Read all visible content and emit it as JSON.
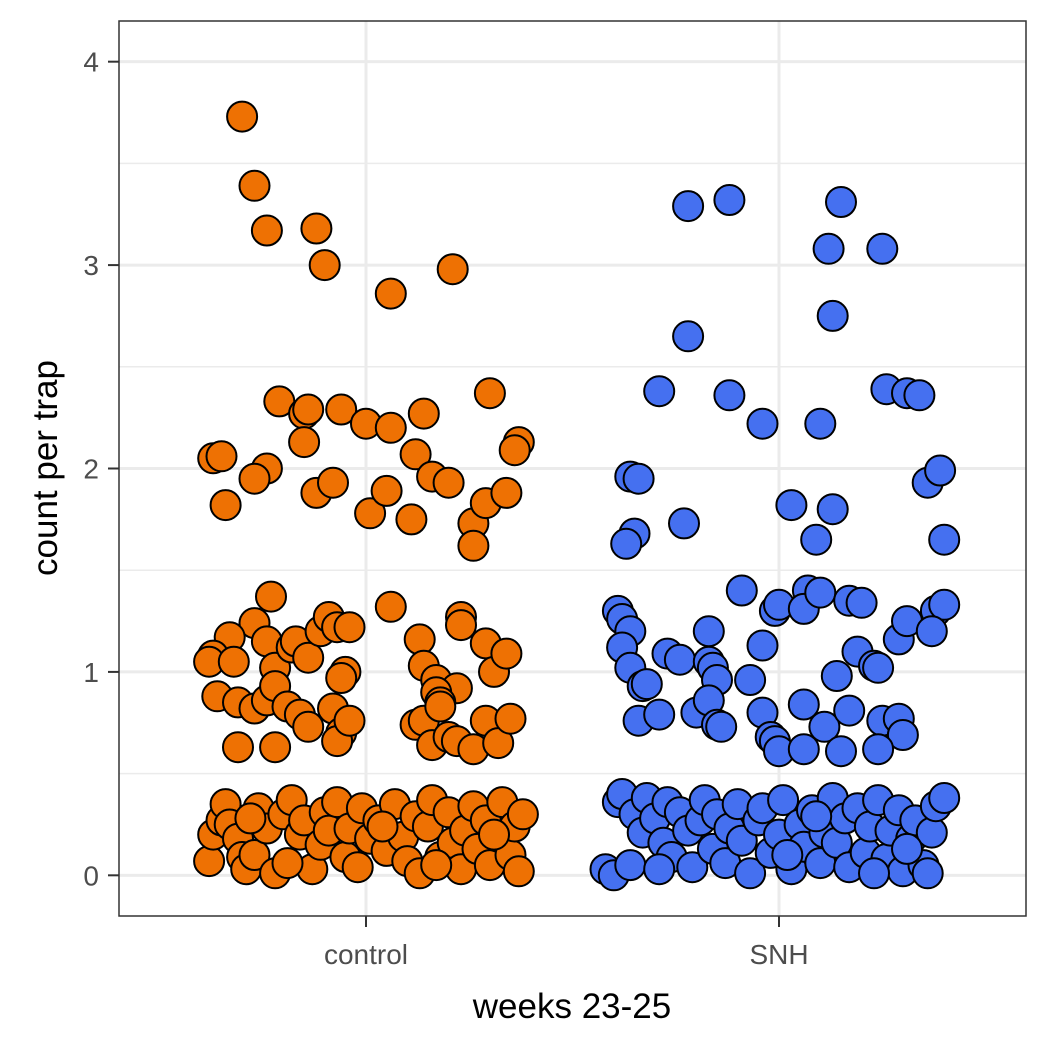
{
  "chart_data": {
    "type": "scatter",
    "subtype": "jitter strip plot",
    "title": "",
    "xlabel": "weeks 23-25",
    "ylabel": "count per trap",
    "categories": [
      "control",
      "SNH"
    ],
    "ylim": [
      -0.2,
      4.2
    ],
    "yticks": [
      0,
      1,
      2,
      3,
      4
    ],
    "grid": true,
    "legend": "none",
    "point_outline": "#000000",
    "series": [
      {
        "category": "control",
        "color": "#EE7103",
        "points": [
          [
            -0.3,
            3.73
          ],
          [
            -0.27,
            3.39
          ],
          [
            -0.24,
            3.17
          ],
          [
            -0.12,
            3.18
          ],
          [
            -0.1,
            3.0
          ],
          [
            0.06,
            2.86
          ],
          [
            0.21,
            2.98
          ],
          [
            -0.21,
            2.33
          ],
          [
            -0.15,
            2.27
          ],
          [
            -0.14,
            2.29
          ],
          [
            -0.06,
            2.29
          ],
          [
            0.0,
            2.22
          ],
          [
            0.06,
            2.2
          ],
          [
            0.14,
            2.27
          ],
          [
            0.3,
            2.37
          ],
          [
            -0.37,
            2.05
          ],
          [
            -0.35,
            2.06
          ],
          [
            -0.24,
            2.0
          ],
          [
            -0.15,
            2.13
          ],
          [
            0.12,
            2.07
          ],
          [
            0.37,
            2.13
          ],
          [
            0.36,
            2.09
          ],
          [
            -0.34,
            1.82
          ],
          [
            -0.27,
            1.95
          ],
          [
            -0.12,
            1.88
          ],
          [
            -0.08,
            1.93
          ],
          [
            0.01,
            1.78
          ],
          [
            0.05,
            1.89
          ],
          [
            0.11,
            1.75
          ],
          [
            0.16,
            1.96
          ],
          [
            0.2,
            1.93
          ],
          [
            0.26,
            1.73
          ],
          [
            0.26,
            1.62
          ],
          [
            0.29,
            1.83
          ],
          [
            0.34,
            1.88
          ],
          [
            -0.23,
            1.37
          ],
          [
            -0.27,
            1.24
          ],
          [
            -0.33,
            1.17
          ],
          [
            -0.37,
            1.08
          ],
          [
            -0.38,
            1.05
          ],
          [
            -0.32,
            1.05
          ],
          [
            -0.24,
            1.15
          ],
          [
            -0.22,
            1.02
          ],
          [
            -0.18,
            1.12
          ],
          [
            -0.17,
            1.15
          ],
          [
            -0.14,
            1.07
          ],
          [
            -0.11,
            1.2
          ],
          [
            -0.09,
            1.27
          ],
          [
            -0.07,
            1.22
          ],
          [
            -0.04,
            1.22
          ],
          [
            -0.05,
            1.0
          ],
          [
            -0.06,
            0.97
          ],
          [
            0.06,
            1.32
          ],
          [
            0.13,
            1.16
          ],
          [
            0.14,
            1.03
          ],
          [
            0.17,
            0.96
          ],
          [
            0.22,
            0.92
          ],
          [
            0.23,
            1.27
          ],
          [
            0.23,
            1.23
          ],
          [
            0.29,
            1.14
          ],
          [
            0.31,
            1.0
          ],
          [
            0.34,
            1.09
          ],
          [
            -0.36,
            0.88
          ],
          [
            -0.31,
            0.85
          ],
          [
            -0.27,
            0.82
          ],
          [
            -0.24,
            0.86
          ],
          [
            -0.22,
            0.93
          ],
          [
            -0.19,
            0.83
          ],
          [
            -0.16,
            0.79
          ],
          [
            -0.14,
            0.73
          ],
          [
            -0.08,
            0.82
          ],
          [
            -0.06,
            0.7
          ],
          [
            -0.07,
            0.66
          ],
          [
            -0.04,
            0.76
          ],
          [
            0.12,
            0.74
          ],
          [
            0.14,
            0.76
          ],
          [
            0.16,
            0.64
          ],
          [
            0.17,
            0.9
          ],
          [
            0.18,
            0.85
          ],
          [
            0.18,
            0.83
          ],
          [
            0.2,
            0.68
          ],
          [
            0.22,
            0.66
          ],
          [
            0.26,
            0.62
          ],
          [
            0.29,
            0.76
          ],
          [
            0.32,
            0.65
          ],
          [
            0.35,
            0.77
          ],
          [
            -0.31,
            0.63
          ],
          [
            -0.22,
            0.63
          ],
          [
            -0.38,
            0.07
          ],
          [
            -0.37,
            0.2
          ],
          [
            -0.35,
            0.27
          ],
          [
            -0.34,
            0.35
          ],
          [
            -0.33,
            0.25
          ],
          [
            -0.31,
            0.18
          ],
          [
            -0.3,
            0.09
          ],
          [
            -0.29,
            0.03
          ],
          [
            -0.27,
            0.1
          ],
          [
            -0.26,
            0.33
          ],
          [
            -0.24,
            0.23
          ],
          [
            -0.22,
            0.01
          ],
          [
            -0.2,
            0.3
          ],
          [
            -0.18,
            0.37
          ],
          [
            -0.16,
            0.2
          ],
          [
            -0.15,
            0.27
          ],
          [
            -0.13,
            0.03
          ],
          [
            -0.11,
            0.15
          ],
          [
            -0.1,
            0.31
          ],
          [
            -0.09,
            0.22
          ],
          [
            -0.07,
            0.36
          ],
          [
            -0.05,
            0.09
          ],
          [
            -0.04,
            0.23
          ],
          [
            -0.02,
            0.04
          ],
          [
            -0.01,
            0.33
          ],
          [
            0.01,
            0.18
          ],
          [
            0.03,
            0.27
          ],
          [
            0.05,
            0.12
          ],
          [
            0.07,
            0.35
          ],
          [
            0.09,
            0.19
          ],
          [
            0.1,
            0.07
          ],
          [
            0.12,
            0.29
          ],
          [
            0.13,
            0.01
          ],
          [
            0.15,
            0.24
          ],
          [
            0.16,
            0.37
          ],
          [
            0.18,
            0.09
          ],
          [
            0.2,
            0.31
          ],
          [
            0.21,
            0.16
          ],
          [
            0.23,
            0.03
          ],
          [
            0.24,
            0.22
          ],
          [
            0.26,
            0.34
          ],
          [
            0.27,
            0.13
          ],
          [
            0.29,
            0.27
          ],
          [
            0.3,
            0.05
          ],
          [
            0.32,
            0.19
          ],
          [
            0.33,
            0.36
          ],
          [
            0.35,
            0.1
          ],
          [
            0.36,
            0.24
          ],
          [
            0.37,
            0.02
          ],
          [
            0.38,
            0.3
          ],
          [
            -0.28,
            0.28
          ],
          [
            -0.19,
            0.06
          ],
          [
            0.04,
            0.24
          ],
          [
            0.17,
            0.05
          ],
          [
            0.31,
            0.2
          ]
        ]
      },
      {
        "category": "SNH",
        "color": "#4570F0",
        "points": [
          [
            -0.22,
            3.29
          ],
          [
            -0.12,
            3.32
          ],
          [
            0.15,
            3.31
          ],
          [
            0.12,
            3.08
          ],
          [
            0.25,
            3.08
          ],
          [
            0.13,
            2.75
          ],
          [
            -0.22,
            2.65
          ],
          [
            -0.29,
            2.38
          ],
          [
            -0.12,
            2.36
          ],
          [
            -0.04,
            2.22
          ],
          [
            0.1,
            2.22
          ],
          [
            0.26,
            2.39
          ],
          [
            0.31,
            2.37
          ],
          [
            0.34,
            2.36
          ],
          [
            -0.36,
            1.96
          ],
          [
            -0.34,
            1.95
          ],
          [
            -0.23,
            1.73
          ],
          [
            -0.35,
            1.68
          ],
          [
            -0.37,
            1.63
          ],
          [
            0.03,
            1.82
          ],
          [
            0.09,
            1.65
          ],
          [
            0.13,
            1.8
          ],
          [
            0.36,
            1.93
          ],
          [
            0.39,
            1.99
          ],
          [
            0.4,
            1.65
          ],
          [
            -0.39,
            1.3
          ],
          [
            -0.38,
            1.26
          ],
          [
            -0.36,
            1.2
          ],
          [
            -0.38,
            1.12
          ],
          [
            -0.36,
            1.02
          ],
          [
            -0.33,
            0.93
          ],
          [
            -0.32,
            0.94
          ],
          [
            -0.27,
            1.09
          ],
          [
            -0.24,
            1.06
          ],
          [
            -0.17,
            1.2
          ],
          [
            -0.17,
            1.05
          ],
          [
            -0.16,
            1.02
          ],
          [
            -0.15,
            0.96
          ],
          [
            -0.09,
            1.4
          ],
          [
            -0.07,
            0.96
          ],
          [
            -0.04,
            1.13
          ],
          [
            -0.01,
            1.3
          ],
          [
            0.0,
            1.33
          ],
          [
            0.07,
            1.4
          ],
          [
            0.06,
            1.31
          ],
          [
            0.1,
            1.39
          ],
          [
            0.17,
            1.35
          ],
          [
            0.2,
            1.34
          ],
          [
            0.19,
            1.1
          ],
          [
            0.23,
            1.03
          ],
          [
            0.24,
            1.02
          ],
          [
            0.29,
            1.16
          ],
          [
            0.31,
            1.25
          ],
          [
            0.38,
            1.3
          ],
          [
            0.4,
            1.33
          ],
          [
            0.37,
            1.2
          ],
          [
            0.14,
            0.98
          ],
          [
            -0.34,
            0.76
          ],
          [
            -0.29,
            0.79
          ],
          [
            -0.2,
            0.8
          ],
          [
            -0.17,
            0.86
          ],
          [
            -0.15,
            0.74
          ],
          [
            -0.14,
            0.73
          ],
          [
            -0.04,
            0.8
          ],
          [
            -0.02,
            0.68
          ],
          [
            -0.01,
            0.66
          ],
          [
            0.0,
            0.61
          ],
          [
            0.06,
            0.84
          ],
          [
            0.06,
            0.62
          ],
          [
            0.11,
            0.73
          ],
          [
            0.15,
            0.61
          ],
          [
            0.17,
            0.81
          ],
          [
            0.25,
            0.76
          ],
          [
            0.29,
            0.77
          ],
          [
            0.3,
            0.69
          ],
          [
            0.24,
            0.62
          ],
          [
            -0.39,
            0.36
          ],
          [
            -0.38,
            0.4
          ],
          [
            -0.35,
            0.3
          ],
          [
            -0.33,
            0.21
          ],
          [
            -0.32,
            0.38
          ],
          [
            -0.3,
            0.28
          ],
          [
            -0.28,
            0.16
          ],
          [
            -0.27,
            0.36
          ],
          [
            -0.26,
            0.09
          ],
          [
            -0.24,
            0.31
          ],
          [
            -0.22,
            0.22
          ],
          [
            -0.21,
            0.04
          ],
          [
            -0.19,
            0.27
          ],
          [
            -0.18,
            0.37
          ],
          [
            -0.16,
            0.13
          ],
          [
            -0.15,
            0.3
          ],
          [
            -0.13,
            0.06
          ],
          [
            -0.12,
            0.23
          ],
          [
            -0.1,
            0.35
          ],
          [
            -0.09,
            0.17
          ],
          [
            -0.07,
            0.01
          ],
          [
            -0.05,
            0.27
          ],
          [
            -0.04,
            0.33
          ],
          [
            -0.02,
            0.11
          ],
          [
            0.0,
            0.2
          ],
          [
            0.01,
            0.37
          ],
          [
            0.03,
            0.03
          ],
          [
            0.05,
            0.25
          ],
          [
            0.06,
            0.14
          ],
          [
            0.08,
            0.32
          ],
          [
            0.1,
            0.06
          ],
          [
            0.11,
            0.21
          ],
          [
            0.13,
            0.38
          ],
          [
            0.14,
            0.16
          ],
          [
            0.16,
            0.28
          ],
          [
            0.17,
            0.04
          ],
          [
            0.19,
            0.33
          ],
          [
            0.21,
            0.11
          ],
          [
            0.22,
            0.24
          ],
          [
            0.24,
            0.37
          ],
          [
            0.26,
            0.08
          ],
          [
            0.27,
            0.22
          ],
          [
            0.29,
            0.32
          ],
          [
            0.3,
            0.02
          ],
          [
            0.32,
            0.18
          ],
          [
            0.33,
            0.27
          ],
          [
            0.35,
            0.05
          ],
          [
            0.37,
            0.21
          ],
          [
            0.38,
            0.34
          ],
          [
            0.4,
            0.38
          ],
          [
            -0.42,
            0.03
          ],
          [
            -0.4,
            0.0
          ],
          [
            -0.36,
            0.05
          ],
          [
            -0.29,
            0.03
          ],
          [
            0.02,
            0.1
          ],
          [
            0.09,
            0.29
          ],
          [
            0.23,
            0.01
          ],
          [
            0.31,
            0.13
          ],
          [
            0.36,
            0.01
          ]
        ]
      }
    ]
  }
}
